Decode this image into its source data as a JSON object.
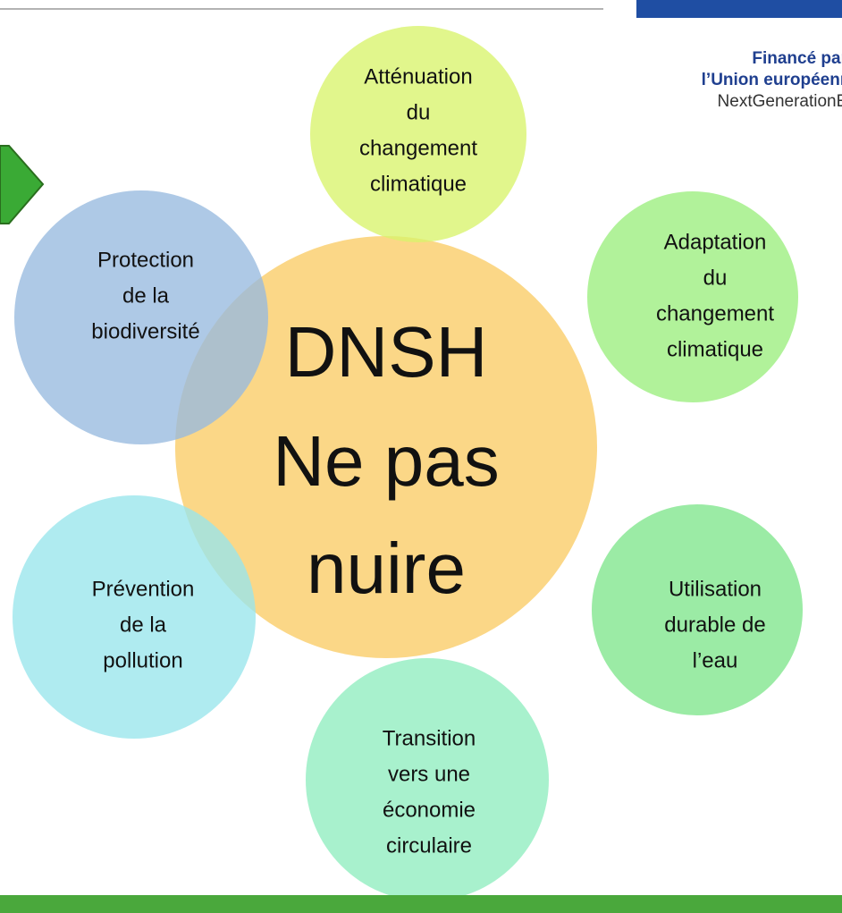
{
  "header": {
    "funding_lines": [
      "Financé par",
      "l’Union européenne",
      "NextGenerationEU"
    ]
  },
  "center": {
    "lines": [
      "DNSH",
      "Ne pas",
      "nuire"
    ]
  },
  "objectives": [
    {
      "lines": [
        "Atténuation",
        "du",
        "changement",
        "climatique"
      ]
    },
    {
      "lines": [
        "Adaptation",
        "du",
        "changement",
        "climatique"
      ]
    },
    {
      "lines": [
        "Utilisation",
        "durable de",
        "l’eau"
      ]
    },
    {
      "lines": [
        "Transition",
        "vers une",
        "économie",
        "circulaire"
      ]
    },
    {
      "lines": [
        "Prévention",
        "de la",
        "pollution"
      ]
    },
    {
      "lines": [
        "Protection",
        "de la",
        "biodiversité"
      ]
    }
  ]
}
